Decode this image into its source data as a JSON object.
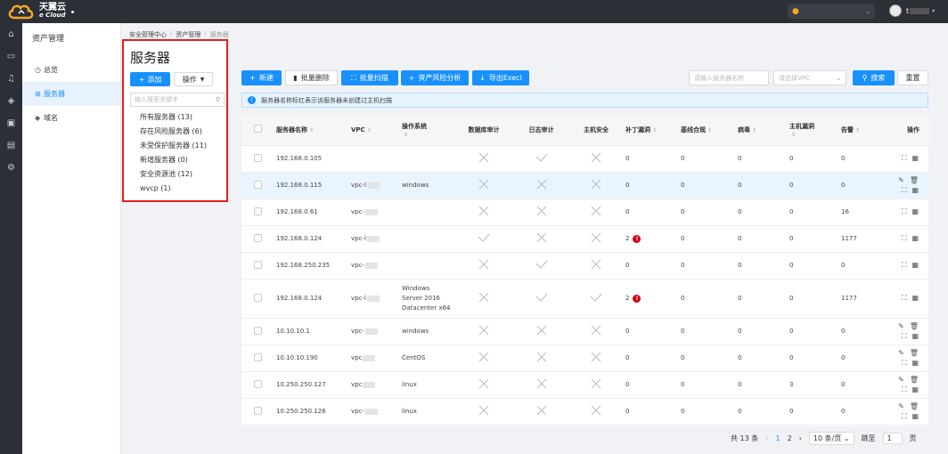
{
  "header": {
    "logo_line1": "天翼云",
    "logo_line2": "e Cloud",
    "region": "",
    "user": "t"
  },
  "rail_icons": [
    "home-icon",
    "cloud-icon",
    "bell-icon",
    "layers-icon",
    "monitor-icon",
    "database-icon",
    "gear-icon"
  ],
  "subnav": {
    "title": "资产管理",
    "items": [
      {
        "label": "总览",
        "icon": "clock-icon",
        "active": false
      },
      {
        "label": "服务器",
        "icon": "grid-icon",
        "active": true
      },
      {
        "label": "域名",
        "icon": "tag-icon",
        "active": false
      }
    ]
  },
  "breadcrumb": [
    "安全管理中心",
    "资产管理",
    "服务器"
  ],
  "page_title": "服务器",
  "group_panel": {
    "add_label": "添加",
    "op_label": "操作",
    "search_placeholder": "输入搜索关键字",
    "groups": [
      "所有服务器 (13)",
      "存在风险服务器 (6)",
      "未受保护服务器 (11)",
      "新增服务器 (0)",
      "安全资源池 (12)",
      "wvcp (1)"
    ]
  },
  "toolbar": {
    "new_label": "新建",
    "batch_delete_label": "批量删除",
    "batch_scan_label": "批量扫描",
    "risk_analysis_label": "资产风险分析",
    "export_label": "导出Execl",
    "search_placeholder": "请输入服务器名称",
    "vpc_placeholder": "请选择VPC",
    "search_label": "搜索",
    "reset_label": "重置"
  },
  "info_text": "服务器名称标红表示该服务器未创建过主机扫描",
  "table": {
    "columns": [
      "服务器名称",
      "VPC",
      "操作系统",
      "数据库审计",
      "日志审计",
      "主机安全",
      "补丁漏洞",
      "基线合规",
      "病毒",
      "主机漏洞",
      "告警",
      "操作"
    ],
    "rows": [
      {
        "name": "192.168.0.105",
        "vpc": "",
        "os": "",
        "db": "x",
        "log": "check",
        "host": "x",
        "patch": "0",
        "patch_warn": false,
        "baseline": "0",
        "virus": "0",
        "hostvuln": "0",
        "alarm": "0",
        "ops": "short",
        "hl": false
      },
      {
        "name": "192.168.0.115",
        "vpc": "vpc-l",
        "os": "windows",
        "db": "x",
        "log": "x",
        "host": "x",
        "patch": "0",
        "patch_warn": false,
        "baseline": "0",
        "virus": "0",
        "hostvuln": "0",
        "alarm": "0",
        "ops": "full",
        "hl": true
      },
      {
        "name": "192.168.0.61",
        "vpc": "vpc-",
        "os": "",
        "db": "x",
        "log": "x",
        "host": "x",
        "patch": "0",
        "patch_warn": false,
        "baseline": "0",
        "virus": "0",
        "hostvuln": "0",
        "alarm": "16",
        "ops": "short",
        "hl": false
      },
      {
        "name": "192.168.0.124",
        "vpc": "vpc-l",
        "os": "",
        "db": "check",
        "log": "x",
        "host": "x",
        "patch": "2",
        "patch_warn": true,
        "baseline": "0",
        "virus": "0",
        "hostvuln": "0",
        "alarm": "1177",
        "ops": "short",
        "hl": false
      },
      {
        "name": "192.168.250.235",
        "vpc": "vpc-",
        "os": "",
        "db": "x",
        "log": "check",
        "host": "x",
        "patch": "0",
        "patch_warn": false,
        "baseline": "0",
        "virus": "0",
        "hostvuln": "0",
        "alarm": "0",
        "ops": "short",
        "hl": false
      },
      {
        "name": "192.168.0.124",
        "vpc": "vpc-l",
        "os": "Windows Server 2016 Datacenter x64",
        "db": "x",
        "log": "check",
        "host": "check",
        "patch": "2",
        "patch_warn": true,
        "baseline": "0",
        "virus": "0",
        "hostvuln": "0",
        "alarm": "1177",
        "ops": "short",
        "hl": false,
        "tall": true
      },
      {
        "name": "10.10.10.1",
        "vpc": "vpc-",
        "os": "windows",
        "db": "x",
        "log": "x",
        "host": "x",
        "patch": "0",
        "patch_warn": false,
        "baseline": "0",
        "virus": "0",
        "hostvuln": "0",
        "alarm": "0",
        "ops": "full",
        "hl": false
      },
      {
        "name": "10.10.10.190",
        "vpc": "vpc",
        "os": "CentOS",
        "db": "x",
        "log": "x",
        "host": "x",
        "patch": "0",
        "patch_warn": false,
        "baseline": "0",
        "virus": "0",
        "hostvuln": "0",
        "alarm": "0",
        "ops": "full",
        "hl": false
      },
      {
        "name": "10.250.250.127",
        "vpc": "vpc",
        "os": "linux",
        "db": "x",
        "log": "x",
        "host": "x",
        "patch": "0",
        "patch_warn": false,
        "baseline": "0",
        "virus": "0",
        "hostvuln": "3",
        "alarm": "0",
        "ops": "full",
        "hl": false
      },
      {
        "name": "10.250.250.126",
        "vpc": "vpc-",
        "os": "linux",
        "db": "x",
        "log": "x",
        "host": "x",
        "patch": "0",
        "patch_warn": false,
        "baseline": "0",
        "virus": "0",
        "hostvuln": "0",
        "alarm": "0",
        "ops": "full",
        "hl": false
      }
    ]
  },
  "pagination": {
    "total": "共 13 条",
    "pages": [
      "1",
      "2"
    ],
    "current": "1",
    "page_size": "10 条/页",
    "goto_label": "跳至",
    "goto_value": "1",
    "page_unit": "页"
  },
  "colors": {
    "accent": "#1890ff",
    "highlight_box": "#e02020",
    "warn": "#d0021b"
  }
}
